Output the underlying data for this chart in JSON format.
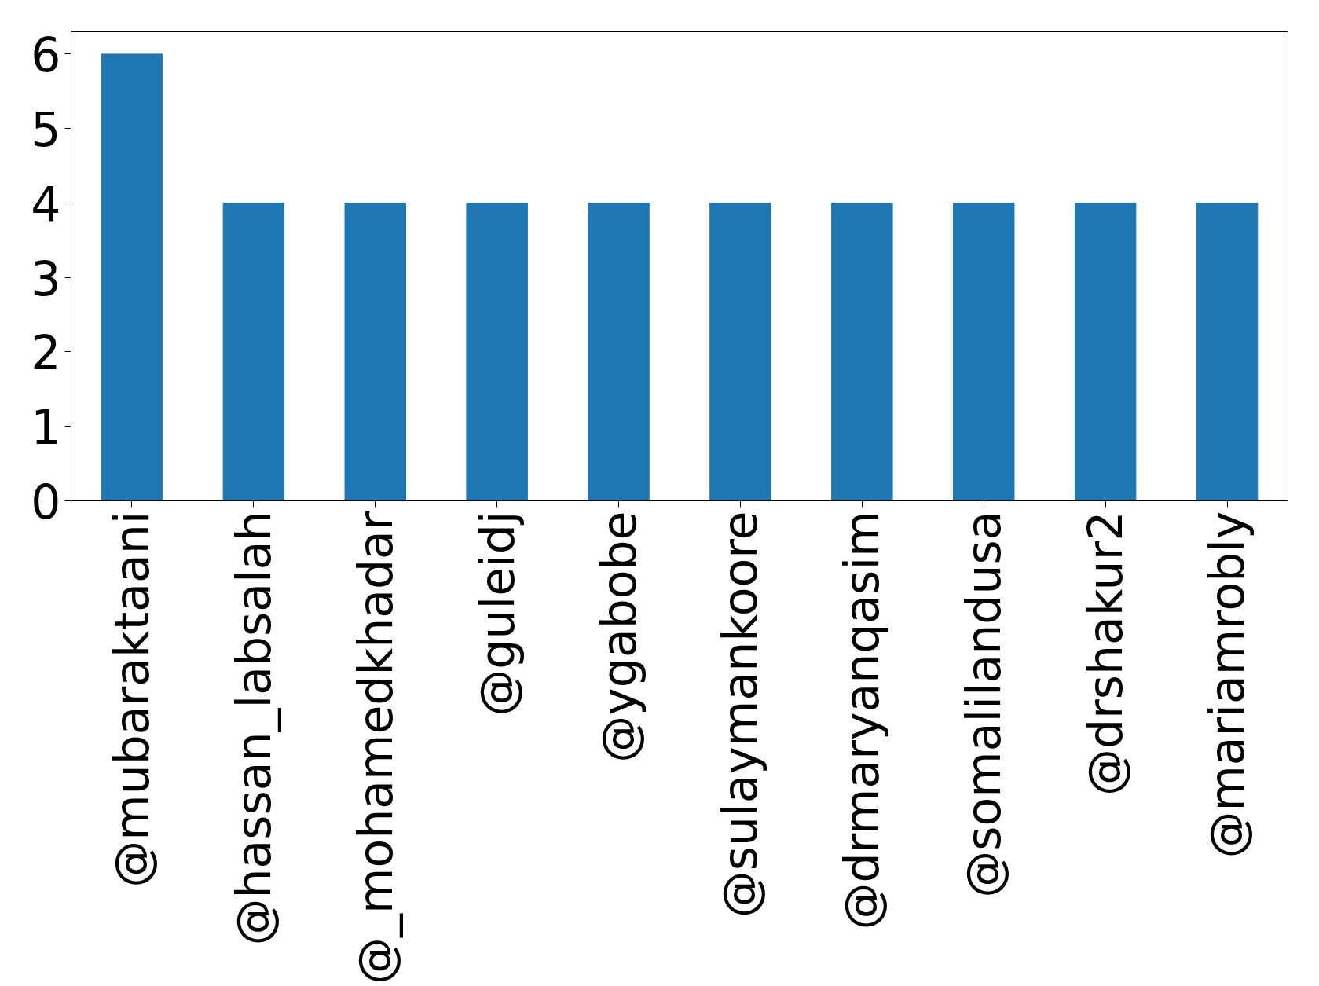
{
  "chart_data": {
    "type": "bar",
    "categories": [
      "@mubaraktaani",
      "@hassan_labsalah",
      "@_mohamedkhadar",
      "@guleidj",
      "@ygabobe",
      "@sulaymankoore",
      "@drmaryanqasim",
      "@somalilandusa",
      "@drshakur2",
      "@mariamrobly"
    ],
    "values": [
      6,
      4,
      4,
      4,
      4,
      4,
      4,
      4,
      4,
      4
    ],
    "color": "#1f77b4",
    "ylim": [
      0,
      6.3
    ],
    "yticks": [
      0,
      1,
      2,
      3,
      4,
      5,
      6
    ],
    "grid": false
  }
}
